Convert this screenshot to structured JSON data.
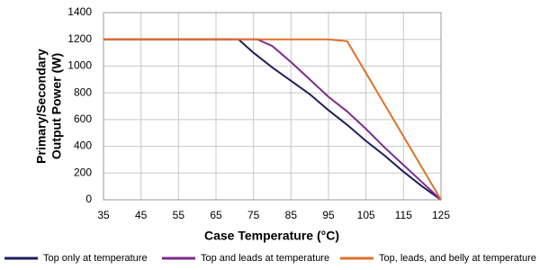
{
  "chart_data": {
    "type": "line",
    "xlabel": "Case Temperature (°C)",
    "ylabel": [
      "Primary/Secondary",
      "Output Power (W)"
    ],
    "xlim": [
      35,
      125
    ],
    "xticks": [
      35,
      45,
      55,
      65,
      75,
      85,
      95,
      105,
      115,
      125
    ],
    "ylim": [
      0,
      1400
    ],
    "yticks": [
      0,
      200,
      400,
      600,
      800,
      1000,
      1200,
      1400
    ],
    "grid": true,
    "series": [
      {
        "name": "Top only at temperature",
        "color": "#1f1f5c",
        "x": [
          35,
          71,
          75,
          80,
          85,
          90,
          95,
          100,
          105,
          110,
          115,
          120,
          125
        ],
        "values": [
          1200,
          1200,
          1100,
          990,
          890,
          790,
          670,
          560,
          440,
          330,
          210,
          100,
          0
        ]
      },
      {
        "name": "Top and leads at temperature",
        "color": "#7b2d8b",
        "x": [
          35,
          76,
          80,
          85,
          90,
          95,
          100,
          105,
          110,
          115,
          120,
          125
        ],
        "values": [
          1200,
          1200,
          1150,
          1030,
          900,
          770,
          660,
          530,
          390,
          260,
          130,
          0
        ]
      },
      {
        "name": "Top, leads, and belly at temperature",
        "color": "#e0712c",
        "x": [
          35,
          95,
          100,
          125
        ],
        "values": [
          1200,
          1200,
          1185,
          0
        ]
      }
    ]
  }
}
